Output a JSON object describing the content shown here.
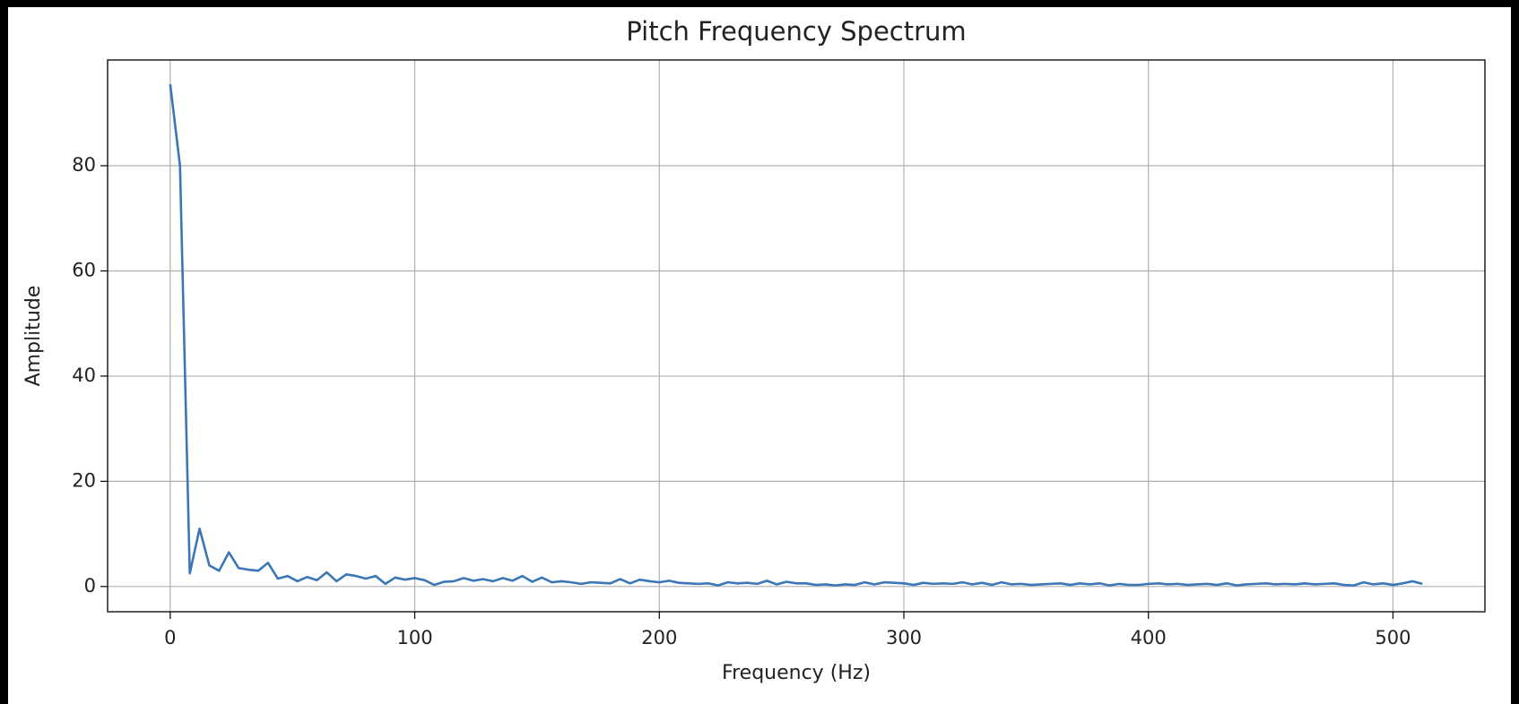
{
  "chart_data": {
    "type": "line",
    "title": "Pitch Frequency Spectrum",
    "x_label": "Frequency (Hz)",
    "y_label": "Amplitude",
    "x": [
      0,
      4,
      8,
      12,
      16,
      20,
      24,
      28,
      32,
      36,
      40,
      44,
      48,
      52,
      56,
      60,
      64,
      68,
      72,
      76,
      80,
      84,
      88,
      92,
      96,
      100,
      104,
      108,
      112,
      116,
      120,
      124,
      128,
      132,
      136,
      140,
      144,
      148,
      152,
      156,
      160,
      164,
      168,
      172,
      176,
      180,
      184,
      188,
      192,
      196,
      200,
      204,
      208,
      212,
      216,
      220,
      224,
      228,
      232,
      236,
      240,
      244,
      248,
      252,
      256,
      260,
      264,
      268,
      272,
      276,
      280,
      284,
      288,
      292,
      296,
      300,
      304,
      308,
      312,
      316,
      320,
      324,
      328,
      332,
      336,
      340,
      344,
      348,
      352,
      356,
      360,
      364,
      368,
      372,
      376,
      380,
      384,
      388,
      392,
      396,
      400,
      404,
      408,
      412,
      416,
      420,
      424,
      428,
      432,
      436,
      440,
      444,
      448,
      452,
      456,
      460,
      464,
      468,
      472,
      476,
      480,
      484,
      488,
      492,
      496,
      500,
      504,
      508,
      512
    ],
    "series": [
      {
        "color": "#3b77b7",
        "values": [
          95.5,
          80,
          2.5,
          11,
          4,
          3,
          6.5,
          3.5,
          3.2,
          3,
          4.5,
          1.5,
          2,
          1,
          1.8,
          1.2,
          2.7,
          1,
          2.3,
          2,
          1.5,
          2,
          0.5,
          1.7,
          1.3,
          1.6,
          1.2,
          0.3,
          0.9,
          1,
          1.6,
          1.1,
          1.4,
          1,
          1.6,
          1.1,
          2,
          0.9,
          1.7,
          0.8,
          1,
          0.8,
          0.5,
          0.8,
          0.7,
          0.6,
          1.4,
          0.6,
          1.3,
          1,
          0.8,
          1.1,
          0.7,
          0.6,
          0.5,
          0.6,
          0.2,
          0.8,
          0.6,
          0.7,
          0.5,
          1.1,
          0.4,
          0.9,
          0.6,
          0.6,
          0.3,
          0.4,
          0.2,
          0.4,
          0.3,
          0.8,
          0.4,
          0.8,
          0.7,
          0.6,
          0.3,
          0.7,
          0.5,
          0.6,
          0.5,
          0.8,
          0.4,
          0.7,
          0.3,
          0.8,
          0.4,
          0.5,
          0.3,
          0.4,
          0.5,
          0.6,
          0.3,
          0.6,
          0.4,
          0.6,
          0.2,
          0.5,
          0.3,
          0.3,
          0.5,
          0.6,
          0.4,
          0.5,
          0.3,
          0.4,
          0.5,
          0.3,
          0.6,
          0.2,
          0.4,
          0.5,
          0.6,
          0.4,
          0.5,
          0.4,
          0.6,
          0.4,
          0.5,
          0.6,
          0.3,
          0.2,
          0.8,
          0.4,
          0.6,
          0.3,
          0.6,
          1,
          0.5
        ]
      }
    ],
    "xlim": [
      -25.6,
      537.6
    ],
    "xticks": [
      0,
      100,
      200,
      300,
      400,
      500
    ],
    "ylim": [
      -4.8,
      100.1
    ],
    "yticks": [
      0,
      20,
      40,
      60,
      80
    ],
    "grid": true
  }
}
